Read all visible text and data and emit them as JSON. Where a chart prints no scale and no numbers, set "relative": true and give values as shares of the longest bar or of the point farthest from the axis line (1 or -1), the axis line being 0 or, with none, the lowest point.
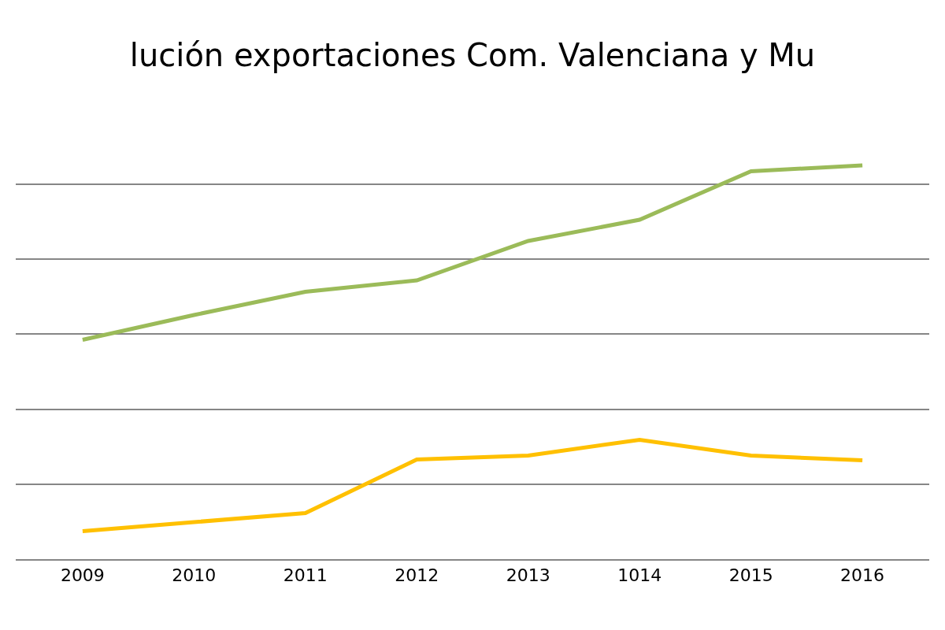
{
  "chart_data": {
    "type": "line",
    "title": "lución exportaciones Com. Valenciana y Mu",
    "categories": [
      "2009",
      "2010",
      "2011",
      "2012",
      "2013",
      "1014",
      "2015",
      "2016"
    ],
    "relative": true,
    "grid": "y",
    "marker": "none",
    "line_style": "solid",
    "series": [
      {
        "color": "#9bbb59",
        "values": [
          0.557,
          0.62,
          0.679,
          0.708,
          0.808,
          0.862,
          0.985,
          1
        ]
      },
      {
        "color": "#ffc000",
        "values": [
          0.071,
          0.094,
          0.117,
          0.253,
          0.263,
          0.303,
          0.263,
          0.251
        ]
      }
    ]
  }
}
